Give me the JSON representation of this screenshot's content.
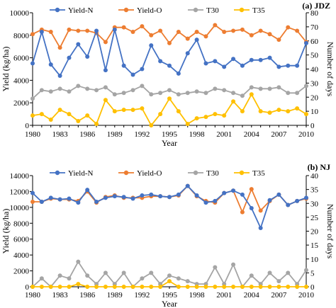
{
  "chart_data": [
    {
      "type": "line",
      "title": "(a) JDZ",
      "xlabel": "Year",
      "ylabel": "Yield (kg/ha)",
      "y2label": "Number of days",
      "ylim": [
        0,
        10000
      ],
      "y2lim": [
        0,
        80
      ],
      "yticks": [
        "0",
        "2000",
        "4000",
        "6000",
        "8000",
        "10000"
      ],
      "y2ticks": [
        "0",
        "10",
        "20",
        "30",
        "40",
        "50",
        "60",
        "70",
        "80"
      ],
      "xticks": [
        "1980",
        "1983",
        "1986",
        "1989",
        "1992",
        "1995",
        "1998",
        "2001",
        "2004",
        "2007",
        "2010"
      ],
      "x": [
        1980,
        1981,
        1982,
        1983,
        1984,
        1985,
        1986,
        1987,
        1988,
        1989,
        1990,
        1991,
        1992,
        1993,
        1994,
        1995,
        1996,
        1997,
        1998,
        1999,
        2000,
        2001,
        2002,
        2003,
        2004,
        2005,
        2006,
        2007,
        2008,
        2009,
        2010
      ],
      "legend_position": "top",
      "series": [
        {
          "name": "Yield-N",
          "axis": "left",
          "color": "#4472c4",
          "values": [
            5500,
            8300,
            5400,
            4400,
            6000,
            7200,
            6100,
            8400,
            4900,
            8500,
            5300,
            4500,
            5000,
            7100,
            5700,
            5300,
            4600,
            6400,
            7600,
            5500,
            5700,
            5200,
            5900,
            5300,
            5800,
            5800,
            6000,
            5200,
            5300,
            5300,
            7300
          ]
        },
        {
          "name": "Yield-O",
          "axis": "left",
          "color": "#ed7d31",
          "values": [
            8100,
            8500,
            8300,
            6900,
            8500,
            8400,
            8400,
            8200,
            7400,
            8700,
            8700,
            8300,
            8800,
            8000,
            8400,
            7300,
            8300,
            7700,
            8300,
            7900,
            8900,
            8300,
            8400,
            8500,
            8000,
            8400,
            8100,
            7600,
            8700,
            8400,
            7400
          ]
        },
        {
          "name": "T30",
          "axis": "right",
          "color": "#a5a5a5",
          "values": [
            19,
            25,
            24,
            26,
            24,
            28,
            26,
            25,
            27,
            22,
            23,
            25,
            28,
            22,
            23,
            25,
            22,
            23,
            24,
            23,
            26,
            25,
            23,
            21,
            27,
            26,
            26,
            27,
            23,
            23,
            28
          ]
        },
        {
          "name": "T35",
          "axis": "right",
          "color": "#ffc000",
          "values": [
            7,
            8,
            4,
            11,
            8,
            3,
            7,
            1,
            18,
            10,
            11,
            11,
            12,
            0,
            8,
            19,
            10,
            1,
            5,
            6,
            8,
            7,
            17,
            10,
            22,
            10,
            9,
            11,
            10,
            12,
            8
          ]
        }
      ]
    },
    {
      "type": "line",
      "title": "(b) NJ",
      "xlabel": "Year",
      "ylabel": "Yield (kg/ha)",
      "y2label": "Number of days",
      "ylim": [
        0,
        14000
      ],
      "y2lim": [
        0,
        40
      ],
      "yticks": [
        "0",
        "2000",
        "4000",
        "6000",
        "8000",
        "10000",
        "12000",
        "14000"
      ],
      "y2ticks": [
        "0",
        "5",
        "10",
        "15",
        "20",
        "25",
        "30",
        "35",
        "40"
      ],
      "xticks": [
        "1980",
        "1983",
        "1986",
        "1989",
        "1992",
        "1995",
        "1998",
        "2001",
        "2004",
        "2007",
        "2010"
      ],
      "x": [
        1980,
        1981,
        1982,
        1983,
        1984,
        1985,
        1986,
        1987,
        1988,
        1989,
        1990,
        1991,
        1992,
        1993,
        1994,
        1995,
        1996,
        1997,
        1998,
        1999,
        2000,
        2001,
        2002,
        2003,
        2004,
        2005,
        2006,
        2007,
        2008,
        2009,
        2010
      ],
      "legend_position": "top",
      "series": [
        {
          "name": "Yield-N",
          "axis": "left",
          "color": "#4472c4",
          "values": [
            11800,
            10700,
            11200,
            11000,
            11100,
            10600,
            12200,
            10700,
            11200,
            11400,
            11300,
            11100,
            11500,
            11600,
            11400,
            11300,
            11600,
            12700,
            11500,
            10600,
            10800,
            11800,
            12100,
            11600,
            9900,
            7400,
            10900,
            11600,
            10300,
            10800,
            11200
          ]
        },
        {
          "name": "Yield-O",
          "axis": "left",
          "color": "#ed7d31",
          "values": [
            10700,
            10700,
            11100,
            11000,
            11000,
            10800,
            12000,
            10600,
            11300,
            11500,
            11200,
            11200,
            11200,
            11400,
            11400,
            11300,
            11500,
            12700,
            11400,
            10800,
            10600,
            11800,
            12100,
            9400,
            12300,
            9600,
            10800,
            11600,
            10300,
            10800,
            11100
          ]
        },
        {
          "name": "T30",
          "axis": "right",
          "color": "#a5a5a5",
          "values": [
            0,
            3,
            0,
            4,
            3,
            9,
            4,
            1,
            5,
            1,
            5,
            0,
            3,
            5,
            1,
            4,
            3,
            2,
            1,
            1,
            7,
            1,
            8,
            0,
            4,
            1,
            5,
            2,
            5,
            1,
            6
          ]
        },
        {
          "name": "T35",
          "axis": "right",
          "color": "#ffc000",
          "values": [
            0,
            0,
            0,
            0,
            0,
            1,
            0,
            0,
            0,
            0,
            0,
            0,
            0,
            0,
            0,
            2,
            0,
            0,
            0,
            0,
            0,
            0,
            0,
            0,
            0,
            0,
            0,
            0,
            0,
            0,
            0
          ]
        }
      ]
    }
  ]
}
